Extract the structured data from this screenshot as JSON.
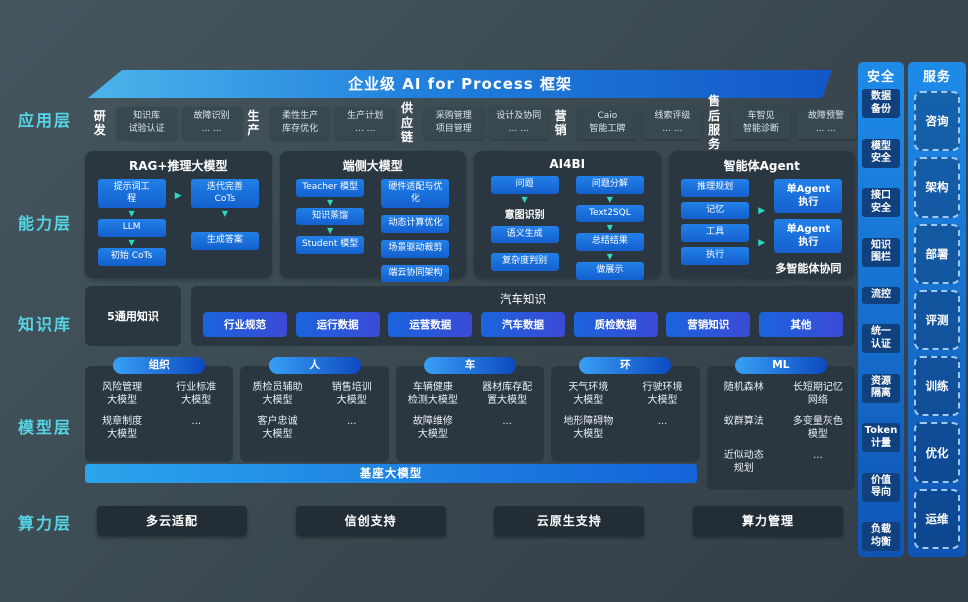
{
  "banner": {
    "title": "企业级 AI for Process 框架"
  },
  "side_labels": [
    "应用层",
    "能力层",
    "知识库",
    "模型层",
    "算力层"
  ],
  "app_layer": {
    "groups": [
      {
        "name": "研发",
        "items": [
          "知识库\n试验认证",
          "故障识别\n... ..."
        ]
      },
      {
        "name": "生产",
        "items": [
          "柔性生产\n库存优化",
          "生产计划\n... ..."
        ]
      },
      {
        "name": "供应\n链",
        "items": [
          "采购管理\n项目管理",
          "设计及协同\n... ..."
        ]
      },
      {
        "name": "营销",
        "items": [
          "Caio\n智能工牌",
          "线索评级\n... ..."
        ]
      },
      {
        "name": "售后\n服务",
        "items": [
          "车智见\n智能诊断",
          "故障预警\n... ..."
        ]
      }
    ]
  },
  "capability_layer": {
    "panels": [
      {
        "type": "rag",
        "title": "RAG+推理大模型",
        "left": [
          "提示词工\n程",
          "LLM",
          "初始 CoTs"
        ],
        "right": [
          "迭代完善\nCoTs",
          "生成答案"
        ]
      },
      {
        "type": "edge",
        "title": "端侧大模型",
        "left": [
          "Teacher 模型",
          "知识蒸馏",
          "Student 模型"
        ],
        "right": [
          "硬件适配与优\n化",
          "动态计算优化",
          "场景驱动裁剪",
          "端云协同架构"
        ]
      },
      {
        "type": "bi",
        "title": "AI4BI",
        "left": [
          "问题",
          "意图识别",
          "语义生成",
          "复杂度判别"
        ],
        "right": [
          "问题分解",
          "Text2SQL",
          "总结结果",
          "做展示"
        ]
      },
      {
        "type": "agent",
        "title": "智能体Agent",
        "left": [
          "推理规划",
          "记忆",
          "工具",
          "执行"
        ],
        "right": [
          "单Agent\n执行",
          "单Agent\n执行"
        ],
        "footer": "多智能体协同"
      }
    ]
  },
  "knowledge_layer": {
    "general": "5通用知识",
    "auto_title": "汽车知识",
    "pills": [
      "行业规范",
      "运行数据",
      "运营数据",
      "汽车数据",
      "质检数据",
      "营销知识",
      "其他"
    ]
  },
  "model_layer": {
    "groups": [
      {
        "tag": "组织",
        "models": [
          "风险管理\n大模型",
          "行业标准\n大模型",
          "规章制度\n大模型",
          "..."
        ]
      },
      {
        "tag": "人",
        "models": [
          "质检员辅助\n大模型",
          "销售培训\n大模型",
          "客户忠诚\n大模型",
          "..."
        ]
      },
      {
        "tag": "车",
        "models": [
          "车辆健康\n检测大模型",
          "器材库存配\n置大模型",
          "故障维修\n大模型",
          "..."
        ]
      },
      {
        "tag": "环",
        "models": [
          "天气环境\n大模型",
          "行驶环境\n大模型",
          "地形障碍物\n大模型",
          "..."
        ]
      },
      {
        "tag": "ML",
        "models": [
          "随机森林",
          "长短期记忆\n网络",
          "蚁群算法",
          "多变量灰色\n模型",
          "近似动态\n规划",
          "..."
        ]
      }
    ],
    "foundation": "基座大模型"
  },
  "compute_layer": {
    "items": [
      "多云适配",
      "信创支持",
      "云原生支持",
      "算力管理"
    ]
  },
  "security_panel": {
    "title": "安全",
    "items": [
      "数据\n备份",
      "模型\n安全",
      "接口\n安全",
      "知识\n围栏",
      "流控",
      "统一\n认证",
      "资源\n隔离",
      "Token\n计量",
      "价值\n导向",
      "负载\n均衡"
    ]
  },
  "service_panel": {
    "title": "服务",
    "items": [
      "咨询",
      "架构",
      "部署",
      "评测",
      "训练",
      "优化",
      "运维"
    ]
  },
  "colors": {
    "accent_blue": "#1c6fe2",
    "arrow_teal": "#2fd8c0",
    "label_cyan": "#55d6e6"
  }
}
